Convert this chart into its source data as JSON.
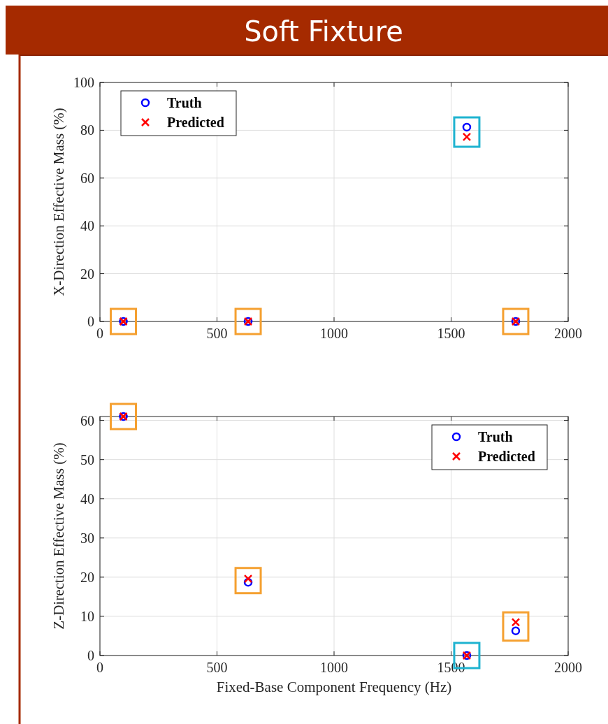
{
  "chart_data": [
    {
      "type": "scatter",
      "title": "Soft Fixture",
      "ylabel": "X-Direction Effective Mass (%)",
      "xlim": [
        0,
        2000
      ],
      "xticks": [
        0,
        500,
        1000,
        1500,
        2000
      ],
      "ylim": [
        0,
        100
      ],
      "yticks": [
        0,
        20,
        40,
        60,
        80,
        100
      ],
      "grid": true,
      "legend": "top left",
      "series": [
        {
          "name": "Truth",
          "color": "#0000ff",
          "marker": "circle",
          "x": [
            100,
            633,
            1567,
            1776
          ],
          "values": [
            0,
            0,
            81.3,
            0
          ]
        },
        {
          "name": "Predicted",
          "color": "#ff0000",
          "marker": "cross",
          "x": [
            100,
            633,
            1567,
            1776
          ],
          "values": [
            0,
            0,
            77.2,
            0
          ]
        }
      ]
    },
    {
      "type": "scatter",
      "xlabel": "Fixed-Base Component Frequency (Hz)",
      "ylabel": "Z-Direction Effective Mass (%)",
      "xlim": [
        0,
        2000
      ],
      "xticks": [
        0,
        500,
        1000,
        1500,
        2000
      ],
      "ylim": [
        0,
        61
      ],
      "yticks": [
        0,
        10,
        20,
        30,
        40,
        50,
        60
      ],
      "grid": true,
      "legend": "top right",
      "series": [
        {
          "name": "Truth",
          "color": "#0000ff",
          "marker": "circle",
          "x": [
            100,
            633,
            1567,
            1776
          ],
          "values": [
            61,
            18.7,
            0,
            6.3
          ]
        },
        {
          "name": "Predicted",
          "color": "#ff0000",
          "marker": "cross",
          "x": [
            100,
            633,
            1567,
            1776
          ],
          "values": [
            61,
            19.6,
            0,
            8.5
          ]
        }
      ]
    }
  ]
}
